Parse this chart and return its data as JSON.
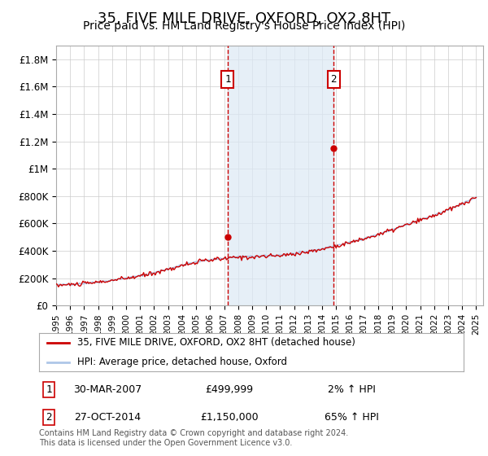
{
  "title": "35, FIVE MILE DRIVE, OXFORD, OX2 8HT",
  "subtitle": "Price paid vs. HM Land Registry's House Price Index (HPI)",
  "title_fontsize": 13,
  "subtitle_fontsize": 10,
  "ylabel_fontsize": 9,
  "xlabel_fontsize": 8,
  "ylim": [
    0,
    1900000
  ],
  "yticks": [
    0,
    200000,
    400000,
    600000,
    800000,
    1000000,
    1200000,
    1400000,
    1600000,
    1800000
  ],
  "ytick_labels": [
    "£0",
    "£200K",
    "£400K",
    "£600K",
    "£800K",
    "£1M",
    "£1.2M",
    "£1.4M",
    "£1.6M",
    "£1.8M"
  ],
  "xlim_start": 1995.0,
  "xlim_end": 2025.5,
  "hpi_color": "#aec6e8",
  "price_color": "#cc0000",
  "transaction1_date": 2007.25,
  "transaction1_price": 499999,
  "transaction1_label": "1",
  "transaction1_text": "30-MAR-2007",
  "transaction1_price_text": "£499,999",
  "transaction1_hpi_text": "2% ↑ HPI",
  "transaction2_date": 2014.83,
  "transaction2_price": 1150000,
  "transaction2_label": "2",
  "transaction2_text": "27-OCT-2014",
  "transaction2_price_text": "£1,150,000",
  "transaction2_hpi_text": "65% ↑ HPI",
  "legend_line1": "35, FIVE MILE DRIVE, OXFORD, OX2 8HT (detached house)",
  "legend_line2": "HPI: Average price, detached house, Oxford",
  "footer_text": "Contains HM Land Registry data © Crown copyright and database right 2024.\nThis data is licensed under the Open Government Licence v3.0.",
  "bg_color": "#ffffff",
  "plot_bg_color": "#ffffff",
  "grid_color": "#cccccc",
  "shade_color": "#dce9f5"
}
